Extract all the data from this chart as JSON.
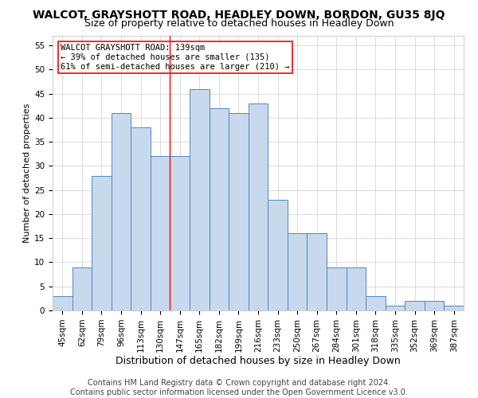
{
  "title": "WALCOT, GRAYSHOTT ROAD, HEADLEY DOWN, BORDON, GU35 8JQ",
  "subtitle": "Size of property relative to detached houses in Headley Down",
  "xlabel": "Distribution of detached houses by size in Headley Down",
  "ylabel": "Number of detached properties",
  "categories": [
    "45sqm",
    "62sqm",
    "79sqm",
    "96sqm",
    "113sqm",
    "130sqm",
    "147sqm",
    "165sqm",
    "182sqm",
    "199sqm",
    "216sqm",
    "233sqm",
    "250sqm",
    "267sqm",
    "284sqm",
    "301sqm",
    "318sqm",
    "335sqm",
    "352sqm",
    "369sqm",
    "387sqm"
  ],
  "values": [
    3,
    9,
    28,
    41,
    38,
    32,
    32,
    46,
    42,
    41,
    43,
    23,
    16,
    16,
    9,
    9,
    3,
    1,
    2,
    2,
    1
  ],
  "bar_color": "#c8d9ed",
  "bar_edge_color": "#4f86c0",
  "property_label": "WALCOT GRAYSHOTT ROAD: 139sqm",
  "pct_smaller": "39% of detached houses are smaller (135)",
  "pct_larger": "61% of semi-detached houses are larger (210)",
  "vline_x": 5.5,
  "ylim": [
    0,
    57
  ],
  "yticks": [
    0,
    5,
    10,
    15,
    20,
    25,
    30,
    35,
    40,
    45,
    50,
    55
  ],
  "footer1": "Contains HM Land Registry data © Crown copyright and database right 2024.",
  "footer2": "Contains public sector information licensed under the Open Government Licence v3.0.",
  "title_fontsize": 10,
  "subtitle_fontsize": 9,
  "xlabel_fontsize": 9,
  "ylabel_fontsize": 8,
  "tick_fontsize": 7.5,
  "footer_fontsize": 7,
  "annotation_fontsize": 7.5,
  "background_color": "#ffffff",
  "grid_color": "#cccccc"
}
